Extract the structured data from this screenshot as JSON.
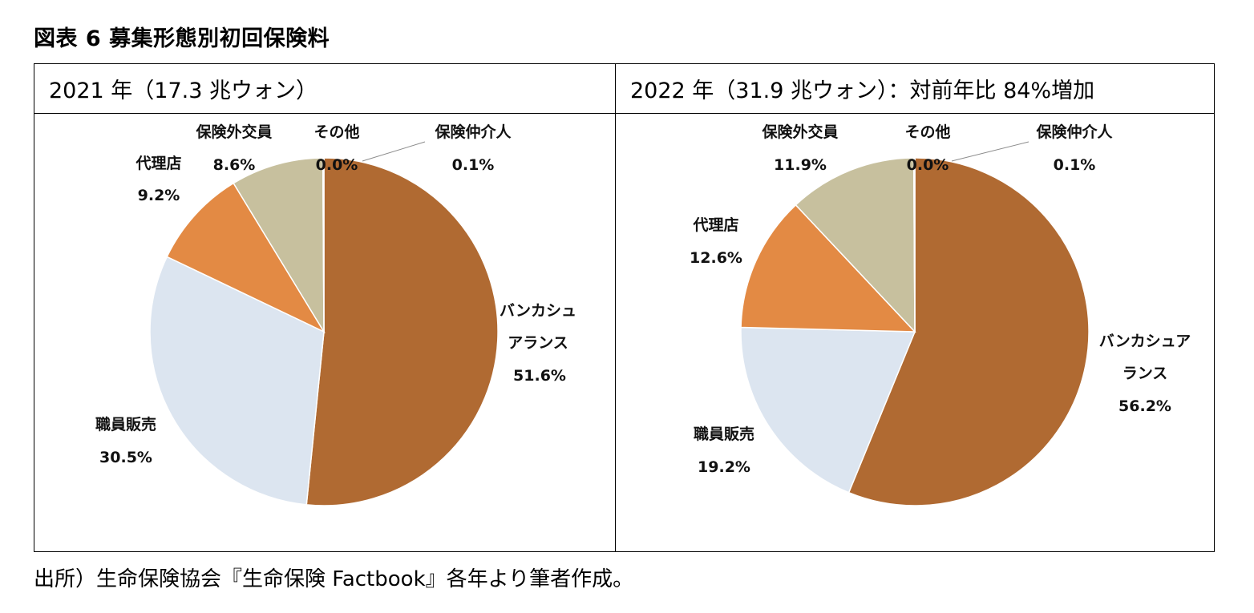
{
  "figure_title": "図表 6  募集形態別初回保険料",
  "source_note": "出所）生命保険協会『生命保険 Factbook』各年より筆者作成。",
  "colors": {
    "bancassurance": "#B06A32",
    "employee_sales": "#DCE5F0",
    "agency": "#E38A44",
    "non_exclusive": "#C7C09E",
    "other": "#D8D8D8",
    "broker": "#7F7F7F"
  },
  "chart_data": [
    {
      "type": "pie",
      "title": "2021 年（17.3 兆ウォン）",
      "slices": [
        {
          "key": "bancassurance",
          "label_lines": [
            "バンカシュ",
            "アランス"
          ],
          "value_text": "51.6%",
          "value": 51.6
        },
        {
          "key": "employee_sales",
          "label_lines": [
            "職員販売"
          ],
          "value_text": "30.5%",
          "value": 30.5
        },
        {
          "key": "agency",
          "label_lines": [
            "代理店"
          ],
          "value_text": "9.2%",
          "value": 9.2
        },
        {
          "key": "non_exclusive",
          "label_lines": [
            "保険外交員"
          ],
          "value_text": "8.6%",
          "value": 8.6
        },
        {
          "key": "other",
          "label_lines": [
            "その他"
          ],
          "value_text": "0.0%",
          "value": 0.0
        },
        {
          "key": "broker",
          "label_lines": [
            "保険仲介人"
          ],
          "value_text": "0.1%",
          "value": 0.1
        }
      ]
    },
    {
      "type": "pie",
      "title": "2022 年（31.9 兆ウォン）：対前年比 84%増加",
      "slices": [
        {
          "key": "bancassurance",
          "label_lines": [
            "バンカシュア",
            "ランス"
          ],
          "value_text": "56.2%",
          "value": 56.2
        },
        {
          "key": "employee_sales",
          "label_lines": [
            "職員販売"
          ],
          "value_text": "19.2%",
          "value": 19.2
        },
        {
          "key": "agency",
          "label_lines": [
            "代理店"
          ],
          "value_text": "12.6%",
          "value": 12.6
        },
        {
          "key": "non_exclusive",
          "label_lines": [
            "保険外交員"
          ],
          "value_text": "11.9%",
          "value": 11.9
        },
        {
          "key": "other",
          "label_lines": [
            "その他"
          ],
          "value_text": "0.0%",
          "value": 0.0
        },
        {
          "key": "broker",
          "label_lines": [
            "保険仲介人"
          ],
          "value_text": "0.1%",
          "value": 0.1
        }
      ]
    }
  ]
}
